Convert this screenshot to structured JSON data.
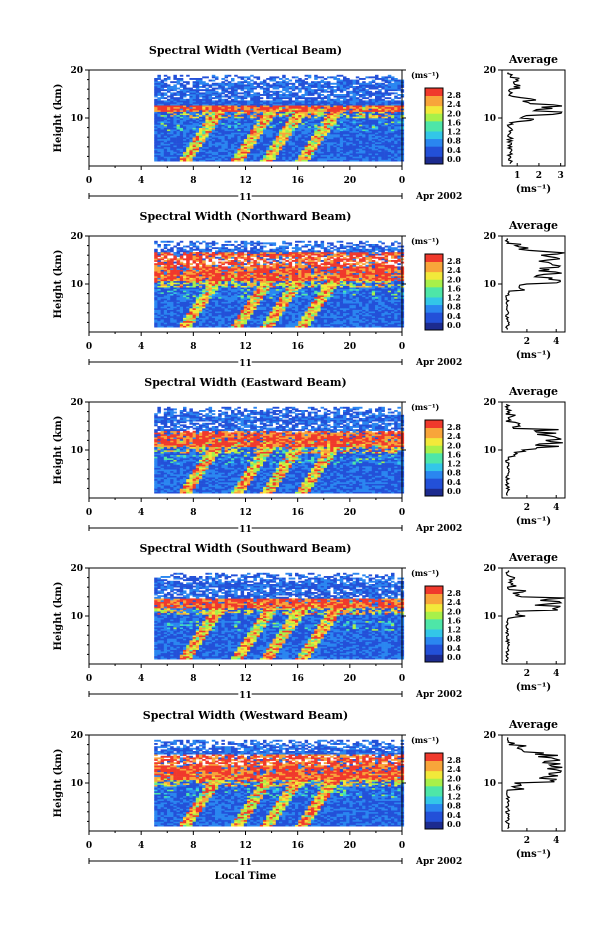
{
  "panels": [
    {
      "title": "Spectral Width (Vertical Beam)",
      "avg_xticks": [
        "1",
        "2",
        "3"
      ],
      "avg_xmax": 3.2,
      "red_band": [
        11,
        12.5
      ]
    },
    {
      "title": "Spectral Width (Northward Beam)",
      "avg_xticks": [
        "2",
        "4"
      ],
      "avg_xmax": 4.6,
      "red_band": [
        10.5,
        16.5
      ]
    },
    {
      "title": "Spectral Width (Eastward Beam)",
      "avg_xticks": [
        "2",
        "4"
      ],
      "avg_xmax": 4.6,
      "red_band": [
        10.5,
        14
      ]
    },
    {
      "title": "Spectral Width (Southward Beam)",
      "avg_xticks": [
        "2",
        "4"
      ],
      "avg_xmax": 4.6,
      "red_band": [
        11.5,
        13.5
      ]
    },
    {
      "title": "Spectral Width (Westward Beam)",
      "avg_xticks": [
        "2",
        "4"
      ],
      "avg_xmax": 4.6,
      "red_band": [
        10.5,
        16
      ]
    }
  ],
  "common": {
    "ylabel": "Height (km)",
    "yticks": [
      "10",
      "20"
    ],
    "xticks": [
      "0",
      "4",
      "8",
      "12",
      "16",
      "20",
      "0"
    ],
    "date_day": "11",
    "date_label": "Apr 2002",
    "xlabel_bottom": "Local Time",
    "avg_title": "Average",
    "avg_yticks": [
      "10",
      "20"
    ],
    "avg_xlabel": "(ms⁻¹)",
    "colorbar_unit": "(ms⁻¹)",
    "colorbar_ticks": [
      "2.8",
      "2.4",
      "2.0",
      "1.6",
      "1.2",
      "0.8",
      "0.4",
      "0.0"
    ]
  },
  "chart_data": {
    "type": "heatmap",
    "x_range_hours": [
      0,
      24
    ],
    "y_range_km": [
      0,
      20
    ],
    "data_start_hour": 5,
    "color_range": [
      0,
      3.0
    ],
    "colormap": [
      "#1c2b8f",
      "#2350d8",
      "#2a86f0",
      "#33c6e8",
      "#4ee6a8",
      "#a8f04a",
      "#f2e93a",
      "#f8a53a",
      "#f0392c"
    ]
  }
}
